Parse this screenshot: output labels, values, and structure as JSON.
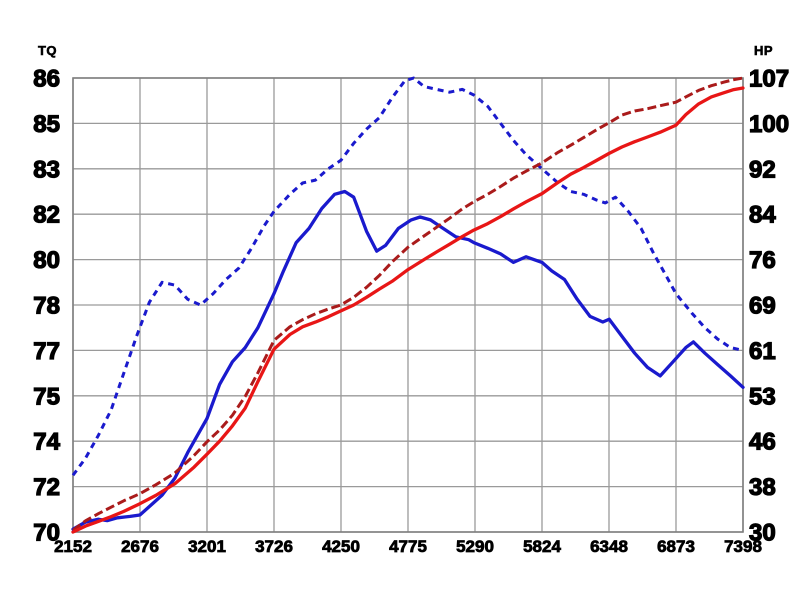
{
  "chart_data": {
    "type": "line",
    "title": "",
    "grid": true,
    "legend": "none",
    "background": "#ffffff",
    "grid_color": "#9a9a9a",
    "border_color": "#7f7f7f",
    "x_axis": {
      "label": "",
      "range": [
        2152,
        7398
      ],
      "ticks": [
        "2152",
        "2676",
        "3201",
        "3726",
        "4250",
        "4775",
        "5290",
        "5824",
        "6348",
        "6873",
        "7398"
      ]
    },
    "y_axis_left": {
      "label": "TQ",
      "range": [
        70,
        86
      ],
      "ticks_top_to_bottom": [
        "86",
        "85",
        "83",
        "82",
        "80",
        "78",
        "77",
        "75",
        "74",
        "72",
        "70"
      ]
    },
    "y_axis_right": {
      "label": "HP",
      "range": [
        30,
        107
      ],
      "ticks_top_to_bottom": [
        "107",
        "100",
        "92",
        "84",
        "76",
        "69",
        "61",
        "53",
        "46",
        "38",
        "30"
      ]
    },
    "series": [
      {
        "name": "torque-dashed-run",
        "axis": "left",
        "color": "#1a1acd",
        "style": "dashed",
        "points": [
          [
            2152,
            72.0
          ],
          [
            2250,
            72.6
          ],
          [
            2350,
            73.4
          ],
          [
            2450,
            74.3
          ],
          [
            2550,
            75.6
          ],
          [
            2650,
            76.9
          ],
          [
            2750,
            78.1
          ],
          [
            2850,
            78.8
          ],
          [
            2950,
            78.7
          ],
          [
            3050,
            78.2
          ],
          [
            3150,
            78.0
          ],
          [
            3250,
            78.4
          ],
          [
            3350,
            78.9
          ],
          [
            3450,
            79.3
          ],
          [
            3550,
            80.0
          ],
          [
            3650,
            80.8
          ],
          [
            3726,
            81.3
          ],
          [
            3850,
            81.9
          ],
          [
            3950,
            82.3
          ],
          [
            4050,
            82.4
          ],
          [
            4150,
            82.8
          ],
          [
            4250,
            83.1
          ],
          [
            4350,
            83.7
          ],
          [
            4450,
            84.2
          ],
          [
            4550,
            84.6
          ],
          [
            4650,
            85.3
          ],
          [
            4750,
            85.9
          ],
          [
            4820,
            86.0
          ],
          [
            4900,
            85.7
          ],
          [
            5000,
            85.6
          ],
          [
            5100,
            85.5
          ],
          [
            5200,
            85.6
          ],
          [
            5290,
            85.4
          ],
          [
            5400,
            85.0
          ],
          [
            5500,
            84.4
          ],
          [
            5600,
            83.8
          ],
          [
            5700,
            83.3
          ],
          [
            5824,
            82.8
          ],
          [
            5950,
            82.3
          ],
          [
            6050,
            82.0
          ],
          [
            6150,
            81.9
          ],
          [
            6250,
            81.7
          ],
          [
            6320,
            81.6
          ],
          [
            6400,
            81.8
          ],
          [
            6500,
            81.3
          ],
          [
            6600,
            80.7
          ],
          [
            6700,
            79.8
          ],
          [
            6800,
            79.0
          ],
          [
            6873,
            78.4
          ],
          [
            7000,
            77.7
          ],
          [
            7100,
            77.2
          ],
          [
            7200,
            76.8
          ],
          [
            7300,
            76.5
          ],
          [
            7398,
            76.4
          ]
        ]
      },
      {
        "name": "torque-solid-run",
        "axis": "left",
        "color": "#1a1acd",
        "style": "solid",
        "points": [
          [
            2152,
            70.1
          ],
          [
            2250,
            70.35
          ],
          [
            2350,
            70.45
          ],
          [
            2420,
            70.4
          ],
          [
            2500,
            70.5
          ],
          [
            2600,
            70.55
          ],
          [
            2676,
            70.6
          ],
          [
            2750,
            70.9
          ],
          [
            2850,
            71.3
          ],
          [
            2950,
            71.9
          ],
          [
            3050,
            72.8
          ],
          [
            3150,
            73.6
          ],
          [
            3201,
            74.0
          ],
          [
            3300,
            75.2
          ],
          [
            3400,
            76.0
          ],
          [
            3500,
            76.5
          ],
          [
            3600,
            77.2
          ],
          [
            3726,
            78.4
          ],
          [
            3800,
            79.2
          ],
          [
            3900,
            80.2
          ],
          [
            4000,
            80.7
          ],
          [
            4100,
            81.4
          ],
          [
            4200,
            81.9
          ],
          [
            4280,
            82.0
          ],
          [
            4350,
            81.8
          ],
          [
            4450,
            80.6
          ],
          [
            4530,
            79.9
          ],
          [
            4600,
            80.1
          ],
          [
            4700,
            80.7
          ],
          [
            4800,
            81.0
          ],
          [
            4870,
            81.1
          ],
          [
            4950,
            81.0
          ],
          [
            5050,
            80.7
          ],
          [
            5150,
            80.4
          ],
          [
            5250,
            80.3
          ],
          [
            5290,
            80.2
          ],
          [
            5400,
            80.0
          ],
          [
            5500,
            79.8
          ],
          [
            5600,
            79.5
          ],
          [
            5700,
            79.7
          ],
          [
            5824,
            79.5
          ],
          [
            5900,
            79.2
          ],
          [
            6000,
            78.9
          ],
          [
            6100,
            78.2
          ],
          [
            6200,
            77.6
          ],
          [
            6300,
            77.4
          ],
          [
            6350,
            77.5
          ],
          [
            6450,
            76.9
          ],
          [
            6550,
            76.3
          ],
          [
            6650,
            75.8
          ],
          [
            6750,
            75.5
          ],
          [
            6850,
            76.0
          ],
          [
            6950,
            76.5
          ],
          [
            7010,
            76.7
          ],
          [
            7100,
            76.3
          ],
          [
            7200,
            75.9
          ],
          [
            7300,
            75.5
          ],
          [
            7398,
            75.1
          ]
        ]
      },
      {
        "name": "horsepower-dashed-run",
        "axis": "right",
        "color": "#aa1b1b",
        "style": "dashed",
        "points": [
          [
            2152,
            30.3
          ],
          [
            2250,
            31.9
          ],
          [
            2350,
            33.1
          ],
          [
            2450,
            34.2
          ],
          [
            2550,
            35.3
          ],
          [
            2676,
            36.5
          ],
          [
            2800,
            38.0
          ],
          [
            2950,
            40.0
          ],
          [
            3100,
            43.0
          ],
          [
            3201,
            45.3
          ],
          [
            3300,
            47.3
          ],
          [
            3400,
            49.8
          ],
          [
            3500,
            53.0
          ],
          [
            3600,
            57.0
          ],
          [
            3726,
            62.5
          ],
          [
            3850,
            64.8
          ],
          [
            3950,
            66.0
          ],
          [
            4050,
            67.0
          ],
          [
            4150,
            67.8
          ],
          [
            4250,
            68.5
          ],
          [
            4350,
            69.8
          ],
          [
            4450,
            71.5
          ],
          [
            4550,
            73.5
          ],
          [
            4650,
            75.8
          ],
          [
            4775,
            78.3
          ],
          [
            4900,
            80.2
          ],
          [
            5000,
            81.7
          ],
          [
            5100,
            83.2
          ],
          [
            5200,
            84.8
          ],
          [
            5290,
            86.0
          ],
          [
            5400,
            87.3
          ],
          [
            5500,
            88.6
          ],
          [
            5600,
            90.0
          ],
          [
            5700,
            91.2
          ],
          [
            5824,
            92.6
          ],
          [
            5950,
            94.4
          ],
          [
            6050,
            95.6
          ],
          [
            6150,
            96.9
          ],
          [
            6250,
            98.2
          ],
          [
            6348,
            99.4
          ],
          [
            6450,
            100.7
          ],
          [
            6550,
            101.4
          ],
          [
            6650,
            101.8
          ],
          [
            6750,
            102.3
          ],
          [
            6873,
            102.9
          ],
          [
            6950,
            103.8
          ],
          [
            7050,
            104.9
          ],
          [
            7150,
            105.7
          ],
          [
            7250,
            106.3
          ],
          [
            7320,
            106.7
          ],
          [
            7398,
            107.0
          ]
        ]
      },
      {
        "name": "horsepower-solid-run",
        "axis": "right",
        "color": "#e81616",
        "style": "solid",
        "points": [
          [
            2152,
            30.0
          ],
          [
            2250,
            31.0
          ],
          [
            2350,
            31.8
          ],
          [
            2450,
            32.6
          ],
          [
            2550,
            33.5
          ],
          [
            2676,
            34.8
          ],
          [
            2800,
            36.2
          ],
          [
            2950,
            38.2
          ],
          [
            3100,
            41.0
          ],
          [
            3201,
            43.2
          ],
          [
            3300,
            45.4
          ],
          [
            3400,
            48.0
          ],
          [
            3500,
            51.0
          ],
          [
            3600,
            55.5
          ],
          [
            3726,
            61.0
          ],
          [
            3850,
            63.5
          ],
          [
            3950,
            64.8
          ],
          [
            4050,
            65.6
          ],
          [
            4150,
            66.5
          ],
          [
            4250,
            67.5
          ],
          [
            4350,
            68.5
          ],
          [
            4450,
            69.8
          ],
          [
            4550,
            71.2
          ],
          [
            4650,
            72.5
          ],
          [
            4775,
            74.5
          ],
          [
            4900,
            76.2
          ],
          [
            5000,
            77.5
          ],
          [
            5100,
            78.8
          ],
          [
            5200,
            80.1
          ],
          [
            5290,
            81.2
          ],
          [
            5400,
            82.3
          ],
          [
            5500,
            83.5
          ],
          [
            5600,
            84.8
          ],
          [
            5700,
            86.0
          ],
          [
            5824,
            87.4
          ],
          [
            5950,
            89.3
          ],
          [
            6050,
            90.7
          ],
          [
            6150,
            91.8
          ],
          [
            6250,
            93.0
          ],
          [
            6348,
            94.2
          ],
          [
            6450,
            95.3
          ],
          [
            6550,
            96.2
          ],
          [
            6650,
            97.0
          ],
          [
            6750,
            97.8
          ],
          [
            6873,
            99.0
          ],
          [
            6950,
            100.8
          ],
          [
            7050,
            102.6
          ],
          [
            7150,
            103.8
          ],
          [
            7250,
            104.5
          ],
          [
            7320,
            105.0
          ],
          [
            7398,
            105.3
          ]
        ]
      }
    ]
  }
}
